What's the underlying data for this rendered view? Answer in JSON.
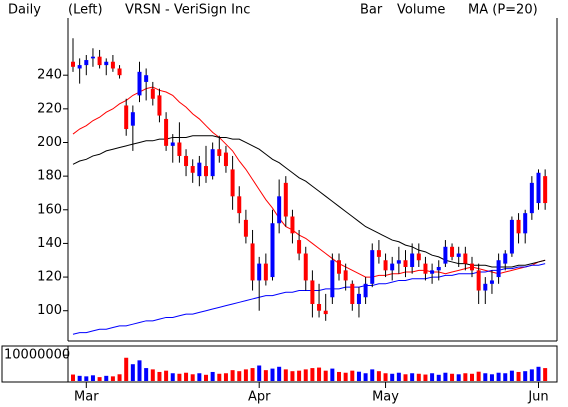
{
  "chart_data": [
    {
      "type": "candlestick",
      "period": "Daily",
      "scale_side": "(Left)",
      "title": "VRSN - VeriSign Inc",
      "name": "Bar",
      "up_color": "#0000ff",
      "down_color": "#ff0000",
      "wick_color": "#000000",
      "categories": [
        null,
        null,
        "Mar",
        null,
        null,
        null,
        null,
        null,
        null,
        null,
        null,
        null,
        null,
        null,
        null,
        null,
        null,
        null,
        null,
        null,
        null,
        null,
        null,
        null,
        null,
        null,
        null,
        null,
        "Apr",
        null,
        null,
        null,
        null,
        null,
        null,
        null,
        null,
        null,
        null,
        null,
        null,
        null,
        null,
        null,
        null,
        null,
        null,
        "May",
        null,
        null,
        null,
        null,
        null,
        null,
        null,
        null,
        null,
        null,
        null,
        null,
        null,
        null,
        null,
        null,
        null,
        null,
        null,
        null,
        null,
        null,
        "Jun",
        null
      ],
      "open": [
        248,
        244,
        246,
        250,
        251,
        246,
        248,
        244,
        222,
        210,
        228,
        236,
        232,
        228,
        214,
        198,
        200,
        192,
        186,
        180,
        186,
        180,
        196,
        194,
        184,
        168,
        154,
        140,
        118,
        128,
        120,
        152,
        176,
        156,
        142,
        134,
        118,
        104,
        100,
        108,
        130,
        124,
        116,
        104,
        108,
        116,
        136,
        130,
        124,
        128,
        130,
        126,
        134,
        128,
        122,
        124,
        128,
        138,
        132,
        134,
        128,
        124,
        112,
        116,
        120,
        128,
        134,
        154,
        146,
        158,
        164,
        180
      ],
      "high": [
        262,
        250,
        252,
        256,
        255,
        250,
        252,
        246,
        226,
        222,
        248,
        244,
        236,
        232,
        218,
        205,
        212,
        196,
        190,
        192,
        198,
        200,
        204,
        198,
        192,
        174,
        160,
        148,
        132,
        134,
        160,
        178,
        180,
        160,
        148,
        138,
        124,
        116,
        110,
        134,
        134,
        128,
        118,
        114,
        120,
        140,
        142,
        134,
        132,
        138,
        136,
        140,
        140,
        132,
        128,
        130,
        142,
        140,
        138,
        138,
        132,
        128,
        120,
        124,
        134,
        136,
        156,
        158,
        160,
        180,
        184,
        184
      ],
      "low": [
        242,
        235,
        240,
        245,
        244,
        240,
        242,
        238,
        204,
        195,
        224,
        225,
        222,
        212,
        195,
        188,
        188,
        180,
        176,
        174,
        176,
        178,
        188,
        182,
        160,
        152,
        140,
        112,
        100,
        115,
        118,
        146,
        150,
        140,
        130,
        112,
        96,
        96,
        94,
        104,
        118,
        112,
        100,
        96,
        104,
        114,
        128,
        120,
        118,
        122,
        120,
        122,
        126,
        118,
        116,
        118,
        126,
        130,
        126,
        124,
        120,
        104,
        104,
        110,
        116,
        124,
        132,
        140,
        140,
        154,
        160,
        160
      ],
      "close": [
        245,
        246,
        249,
        251,
        246,
        248,
        244,
        240,
        208,
        218,
        242,
        240,
        226,
        216,
        198,
        200,
        192,
        186,
        182,
        188,
        180,
        196,
        192,
        186,
        168,
        158,
        144,
        118,
        128,
        118,
        152,
        168,
        156,
        146,
        134,
        118,
        104,
        100,
        98,
        130,
        122,
        118,
        104,
        110,
        116,
        136,
        132,
        124,
        128,
        130,
        126,
        134,
        130,
        122,
        124,
        126,
        138,
        132,
        134,
        128,
        124,
        112,
        116,
        118,
        130,
        134,
        154,
        146,
        158,
        176,
        182,
        164
      ],
      "series": [
        {
          "name": "MA (P=20)",
          "color": "#ff0000",
          "values": [
            205,
            208,
            210,
            213,
            215,
            218,
            220,
            223,
            225,
            228,
            230,
            232,
            233,
            231,
            230,
            228,
            224,
            221,
            217,
            214,
            210,
            206,
            203,
            199,
            195,
            189,
            184,
            178,
            172,
            166,
            161,
            155,
            150,
            148,
            145,
            143,
            140,
            137,
            134,
            131,
            128,
            126,
            124,
            122,
            120,
            120,
            121,
            121,
            122,
            122,
            123,
            123,
            124,
            124,
            123,
            123,
            122,
            123,
            124,
            125,
            126,
            125,
            124,
            123,
            122,
            123,
            124,
            125,
            126,
            127,
            129,
            130
          ]
        },
        {
          "color": "#000000",
          "values": [
            187,
            189,
            190,
            192,
            193,
            195,
            196,
            197,
            198,
            199,
            200,
            201,
            201,
            202,
            202,
            203,
            203,
            203,
            204,
            204,
            204,
            204,
            203,
            203,
            202,
            202,
            200,
            198,
            196,
            193,
            190,
            188,
            185,
            182,
            179,
            177,
            174,
            171,
            168,
            165,
            162,
            159,
            156,
            153,
            150,
            148,
            146,
            144,
            142,
            141,
            139,
            138,
            136,
            135,
            133,
            132,
            130,
            129,
            128,
            128,
            127,
            127,
            127,
            126,
            126,
            126,
            126,
            127,
            127,
            128,
            129,
            130
          ]
        },
        {
          "color": "#0000ff",
          "values": [
            86,
            87,
            87,
            88,
            89,
            89,
            90,
            91,
            91,
            92,
            93,
            94,
            94,
            95,
            96,
            96,
            97,
            98,
            98,
            99,
            100,
            101,
            102,
            103,
            104,
            105,
            106,
            107,
            108,
            109,
            109,
            110,
            111,
            111,
            112,
            112,
            112,
            112,
            113,
            113,
            113,
            114,
            114,
            114,
            115,
            115,
            116,
            116,
            117,
            118,
            118,
            119,
            119,
            119,
            120,
            120,
            121,
            121,
            122,
            122,
            122,
            123,
            123,
            124,
            124,
            125,
            125,
            126,
            126,
            127,
            127,
            128
          ]
        }
      ],
      "ylim": [
        82,
        274
      ],
      "yticks": [
        100,
        120,
        140,
        160,
        180,
        200,
        220,
        240
      ]
    },
    {
      "type": "bar",
      "name": "Volume",
      "name_color": "#00c000",
      "values": [
        2500000,
        2000000,
        1800000,
        2200000,
        1500000,
        2000000,
        1800000,
        2600000,
        9000000,
        6500000,
        8000000,
        5000000,
        4500000,
        3500000,
        4000000,
        3000000,
        2800000,
        3200000,
        2600000,
        3000000,
        2400000,
        3500000,
        2800000,
        3000000,
        4200000,
        3800000,
        4500000,
        5000000,
        6000000,
        4200000,
        4800000,
        5500000,
        4500000,
        3800000,
        4000000,
        4500000,
        5000000,
        5200000,
        4000000,
        4800000,
        3500000,
        3200000,
        4000000,
        3600000,
        3000000,
        4500000,
        3800000,
        3000000,
        2800000,
        3200000,
        2600000,
        3000000,
        2800000,
        2500000,
        3000000,
        2400000,
        3200000,
        2800000,
        2600000,
        3000000,
        2800000,
        3600000,
        3000000,
        2600000,
        3200000,
        3000000,
        4000000,
        3500000,
        3800000,
        4500000,
        5500000,
        5000000
      ],
      "ylim": [
        0,
        12000000
      ],
      "yticks": [
        10000000
      ]
    }
  ]
}
